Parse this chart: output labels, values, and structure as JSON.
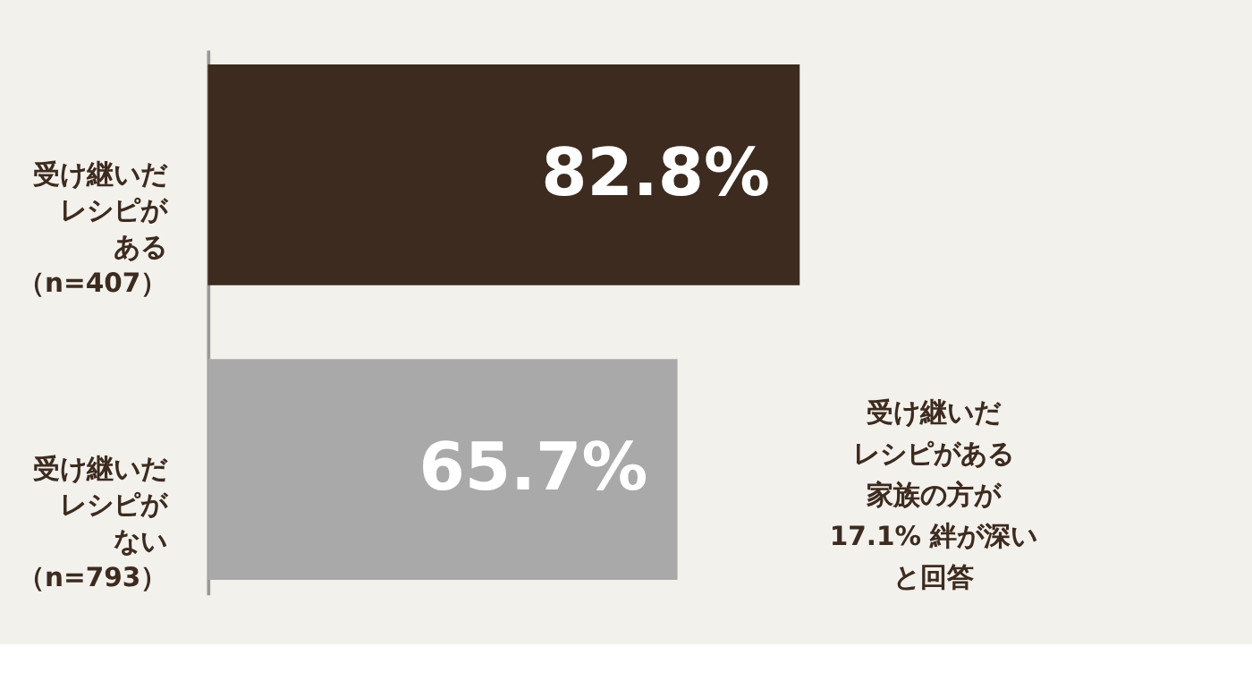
{
  "chart_data": {
    "type": "bar",
    "orientation": "horizontal",
    "categories": [
      "受け継いだレシピがある（n=407）",
      "受け継いだレシピがない（n=793）"
    ],
    "values": [
      82.8,
      65.7
    ],
    "colors": [
      "#3d2b1f",
      "#a9a9a9"
    ],
    "value_labels": [
      "82.8%",
      "65.7%"
    ],
    "annotations": [
      "受け継いだレシピがある家族の方が17.1% 絆が深いと回答"
    ],
    "tick_labels": "y"
  }
}
